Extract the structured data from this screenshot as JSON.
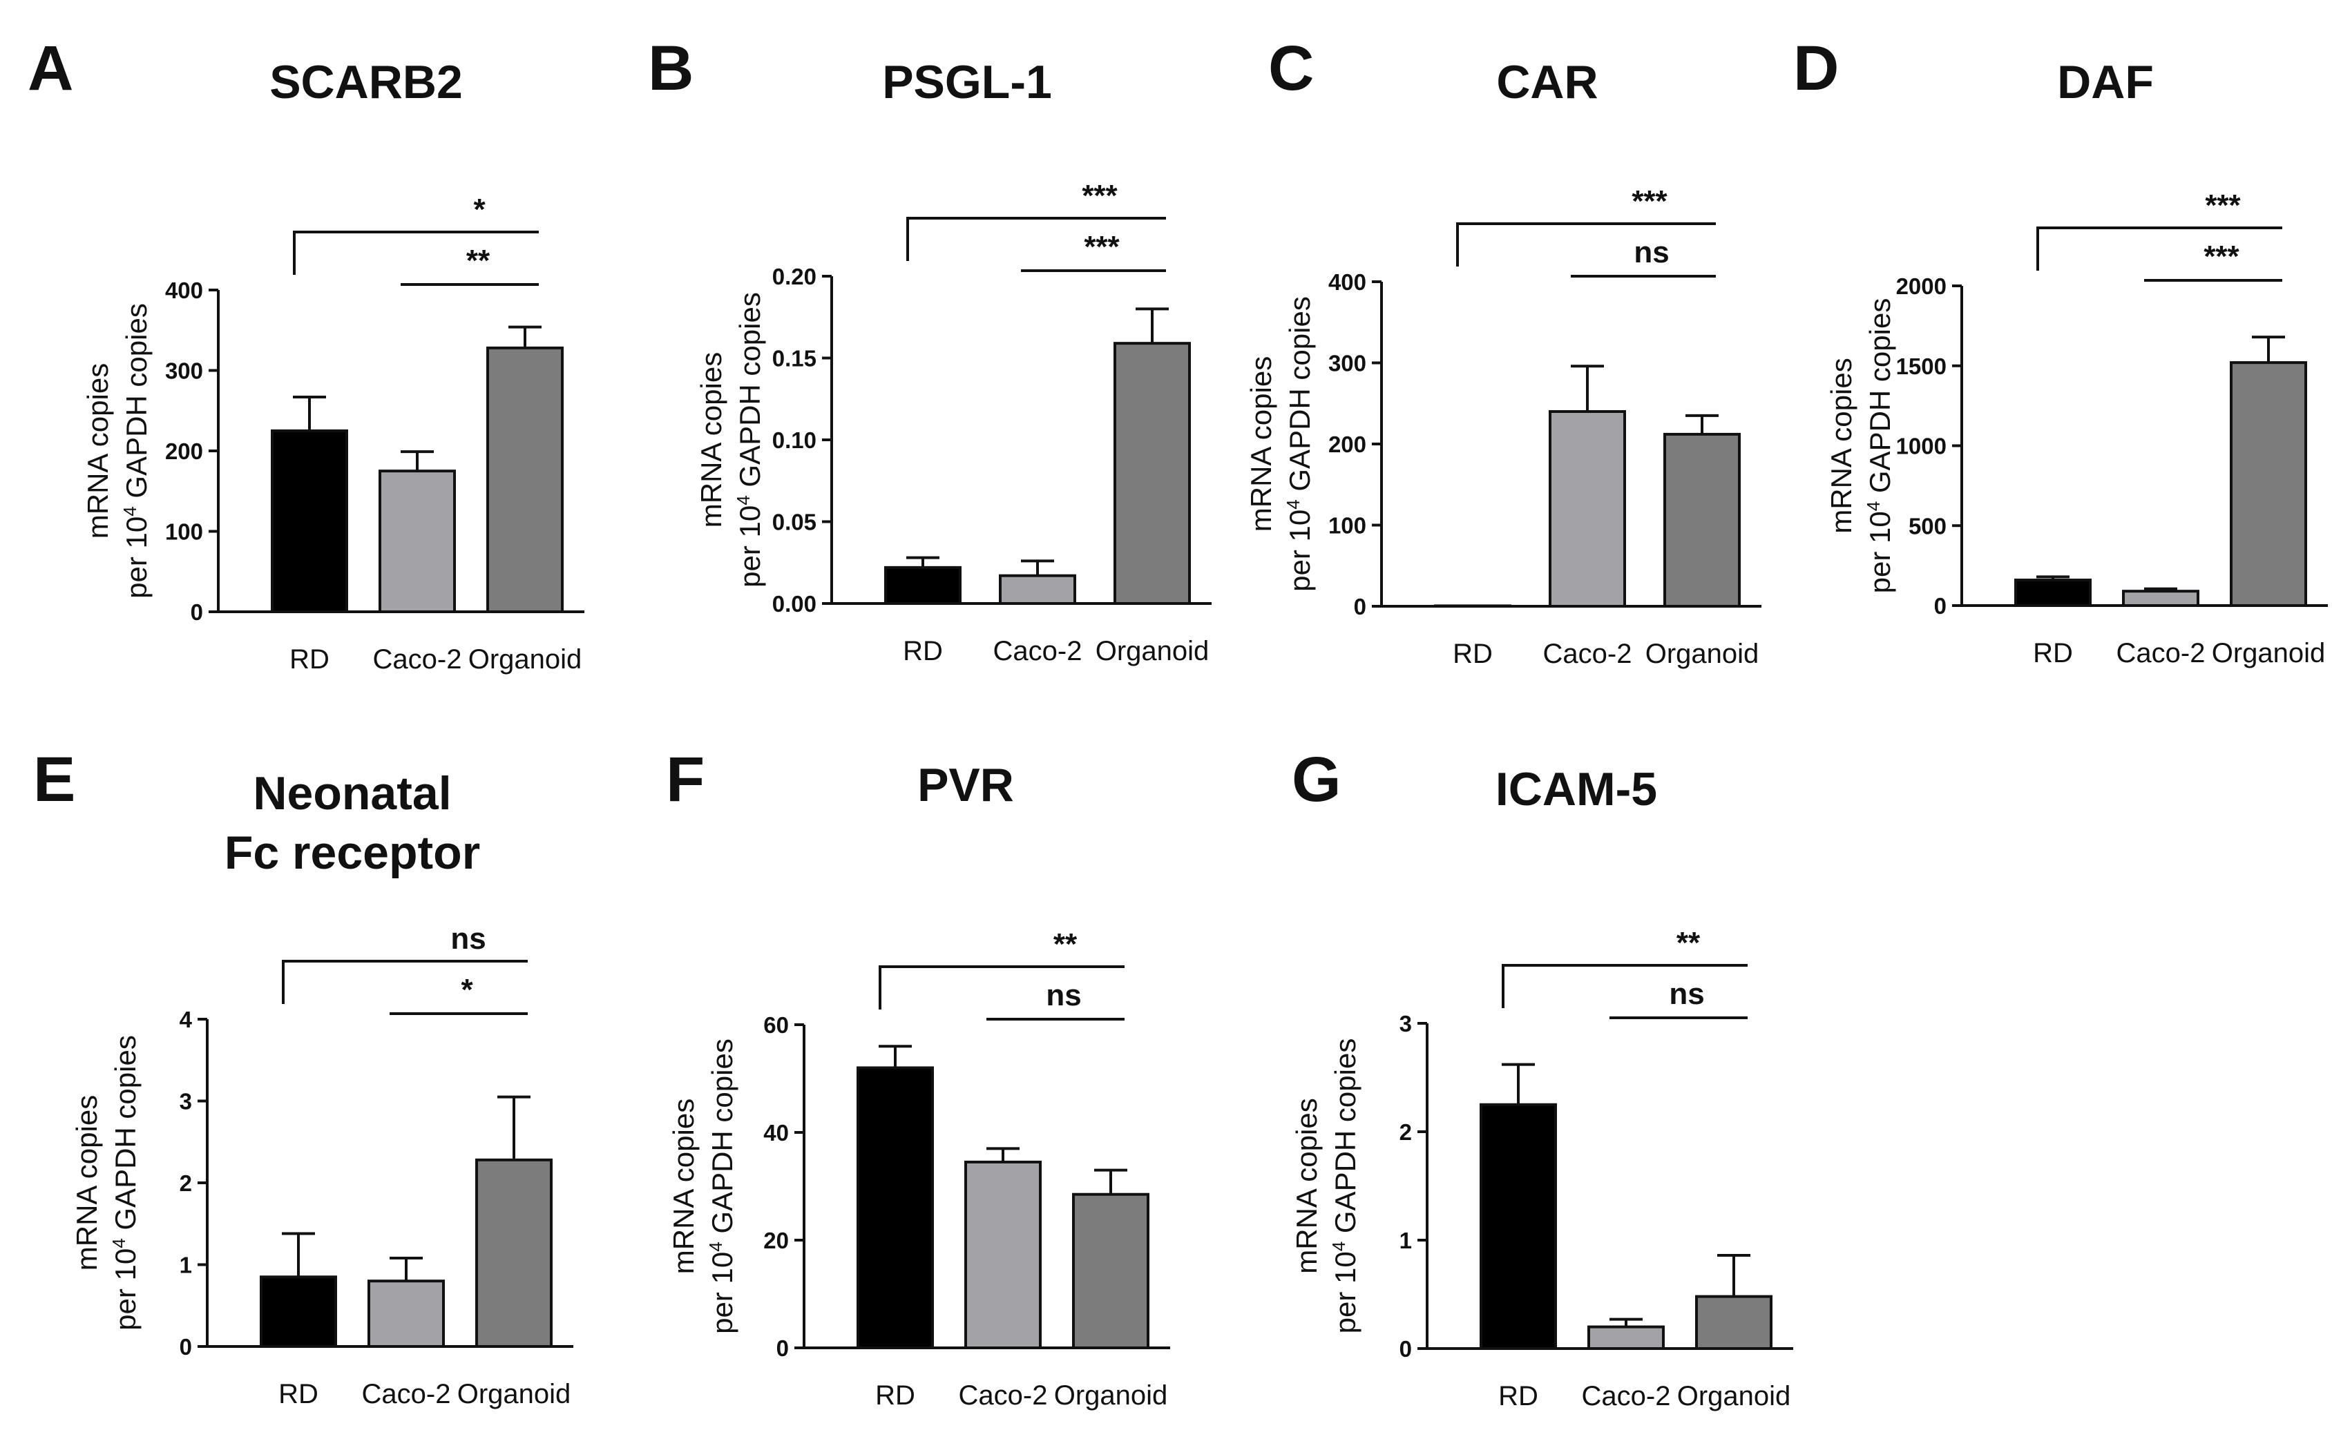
{
  "figure": {
    "bar_colors": [
      "#000000",
      "#a3a3a7",
      "#7c7c7c"
    ]
  },
  "chart_data": [
    {
      "letter": "A",
      "type": "bar",
      "title": [
        "SCARB2"
      ],
      "ylabel_line1": "mRNA copies",
      "ylabel_line2_pre": "per 10",
      "ylabel_line2_sup": "4",
      "ylabel_line2_post": " GAPDH copies",
      "categories": [
        "RD",
        "Caco-2",
        "Organoid"
      ],
      "values": [
        225,
        175,
        328
      ],
      "errors": [
        42,
        24,
        26
      ],
      "ylim": [
        0,
        400
      ],
      "yticks": [
        0,
        100,
        200,
        300,
        400
      ],
      "ytick_labels": [
        "0",
        "100",
        "200",
        "300",
        "400"
      ],
      "significance": [
        {
          "from": 0,
          "to": 2,
          "label": "*",
          "kind": "bracket"
        },
        {
          "from": 1,
          "to": 2,
          "label": "**",
          "kind": "line"
        }
      ]
    },
    {
      "letter": "B",
      "type": "bar",
      "title": [
        "PSGL-1"
      ],
      "ylabel_line1": "mRNA copies",
      "ylabel_line2_pre": "per 10",
      "ylabel_line2_sup": "4",
      "ylabel_line2_post": " GAPDH copies",
      "categories": [
        "RD",
        "Caco-2",
        "Organoid"
      ],
      "values": [
        0.022,
        0.017,
        0.159
      ],
      "errors": [
        0.006,
        0.009,
        0.021
      ],
      "ylim": [
        0,
        0.2
      ],
      "yticks": [
        0,
        0.05,
        0.1,
        0.15,
        0.2
      ],
      "ytick_labels": [
        "0.00",
        "0.05",
        "0.10",
        "0.15",
        "0.20"
      ],
      "significance": [
        {
          "from": 0,
          "to": 2,
          "label": "***",
          "kind": "bracket"
        },
        {
          "from": 1,
          "to": 2,
          "label": "***",
          "kind": "line"
        }
      ]
    },
    {
      "letter": "C",
      "type": "bar",
      "title": [
        "CAR"
      ],
      "ylabel_line1": "mRNA copies",
      "ylabel_line2_pre": "per 10",
      "ylabel_line2_sup": "4",
      "ylabel_line2_post": " GAPDH copies",
      "categories": [
        "RD",
        "Caco-2",
        "Organoid"
      ],
      "values": [
        0.5,
        240,
        212
      ],
      "errors": [
        0,
        56,
        23
      ],
      "ylim": [
        0,
        400
      ],
      "yticks": [
        0,
        100,
        200,
        300,
        400
      ],
      "ytick_labels": [
        "0",
        "100",
        "200",
        "300",
        "400"
      ],
      "significance": [
        {
          "from": 0,
          "to": 2,
          "label": "***",
          "kind": "bracket"
        },
        {
          "from": 1,
          "to": 2,
          "label": "ns",
          "kind": "line"
        }
      ]
    },
    {
      "letter": "D",
      "type": "bar",
      "title": [
        "DAF"
      ],
      "ylabel_line1": "mRNA copies",
      "ylabel_line2_pre": "per 10",
      "ylabel_line2_sup": "4",
      "ylabel_line2_post": " GAPDH copies",
      "categories": [
        "RD",
        "Caco-2",
        "Organoid"
      ],
      "values": [
        160,
        90,
        1520
      ],
      "errors": [
        20,
        15,
        160
      ],
      "ylim": [
        0,
        2000
      ],
      "yticks": [
        0,
        500,
        1000,
        1500,
        2000
      ],
      "ytick_labels": [
        "0",
        "500",
        "1000",
        "1500",
        "2000"
      ],
      "significance": [
        {
          "from": 0,
          "to": 2,
          "label": "***",
          "kind": "bracket"
        },
        {
          "from": 1,
          "to": 2,
          "label": "***",
          "kind": "line"
        }
      ]
    },
    {
      "letter": "E",
      "type": "bar",
      "title": [
        "Neonatal",
        "Fc receptor"
      ],
      "ylabel_line1": "mRNA copies",
      "ylabel_line2_pre": "per 10",
      "ylabel_line2_sup": "4",
      "ylabel_line2_post": " GAPDH copies",
      "categories": [
        "RD",
        "Caco-2",
        "Organoid"
      ],
      "values": [
        0.85,
        0.8,
        2.28
      ],
      "errors": [
        0.53,
        0.28,
        0.77
      ],
      "ylim": [
        0,
        4
      ],
      "yticks": [
        0,
        1,
        2,
        3,
        4
      ],
      "ytick_labels": [
        "0",
        "1",
        "2",
        "3",
        "4"
      ],
      "significance": [
        {
          "from": 0,
          "to": 2,
          "label": "ns",
          "kind": "bracket"
        },
        {
          "from": 1,
          "to": 2,
          "label": "*",
          "kind": "line"
        }
      ]
    },
    {
      "letter": "F",
      "type": "bar",
      "title": [
        "PVR"
      ],
      "ylabel_line1": "mRNA copies",
      "ylabel_line2_pre": "per 10",
      "ylabel_line2_sup": "4",
      "ylabel_line2_post": " GAPDH copies",
      "categories": [
        "RD",
        "Caco-2",
        "Organoid"
      ],
      "values": [
        52,
        34.5,
        28.5
      ],
      "errors": [
        4,
        2.5,
        4.5
      ],
      "ylim": [
        0,
        60
      ],
      "yticks": [
        0,
        20,
        40,
        60
      ],
      "ytick_labels": [
        "0",
        "20",
        "40",
        "60"
      ],
      "significance": [
        {
          "from": 0,
          "to": 2,
          "label": "**",
          "kind": "bracket"
        },
        {
          "from": 1,
          "to": 2,
          "label": "ns",
          "kind": "line"
        }
      ]
    },
    {
      "letter": "G",
      "type": "bar",
      "title": [
        "ICAM-5"
      ],
      "ylabel_line1": "mRNA copies",
      "ylabel_line2_pre": "per 10",
      "ylabel_line2_sup": "4",
      "ylabel_line2_post": " GAPDH copies",
      "categories": [
        "RD",
        "Caco-2",
        "Organoid"
      ],
      "values": [
        2.25,
        0.2,
        0.48
      ],
      "errors": [
        0.37,
        0.07,
        0.38
      ],
      "ylim": [
        0,
        3
      ],
      "yticks": [
        0,
        1,
        2,
        3
      ],
      "ytick_labels": [
        "0",
        "1",
        "2",
        "3"
      ],
      "significance": [
        {
          "from": 0,
          "to": 2,
          "label": "**",
          "kind": "bracket"
        },
        {
          "from": 1,
          "to": 2,
          "label": "ns",
          "kind": "line"
        }
      ]
    }
  ]
}
